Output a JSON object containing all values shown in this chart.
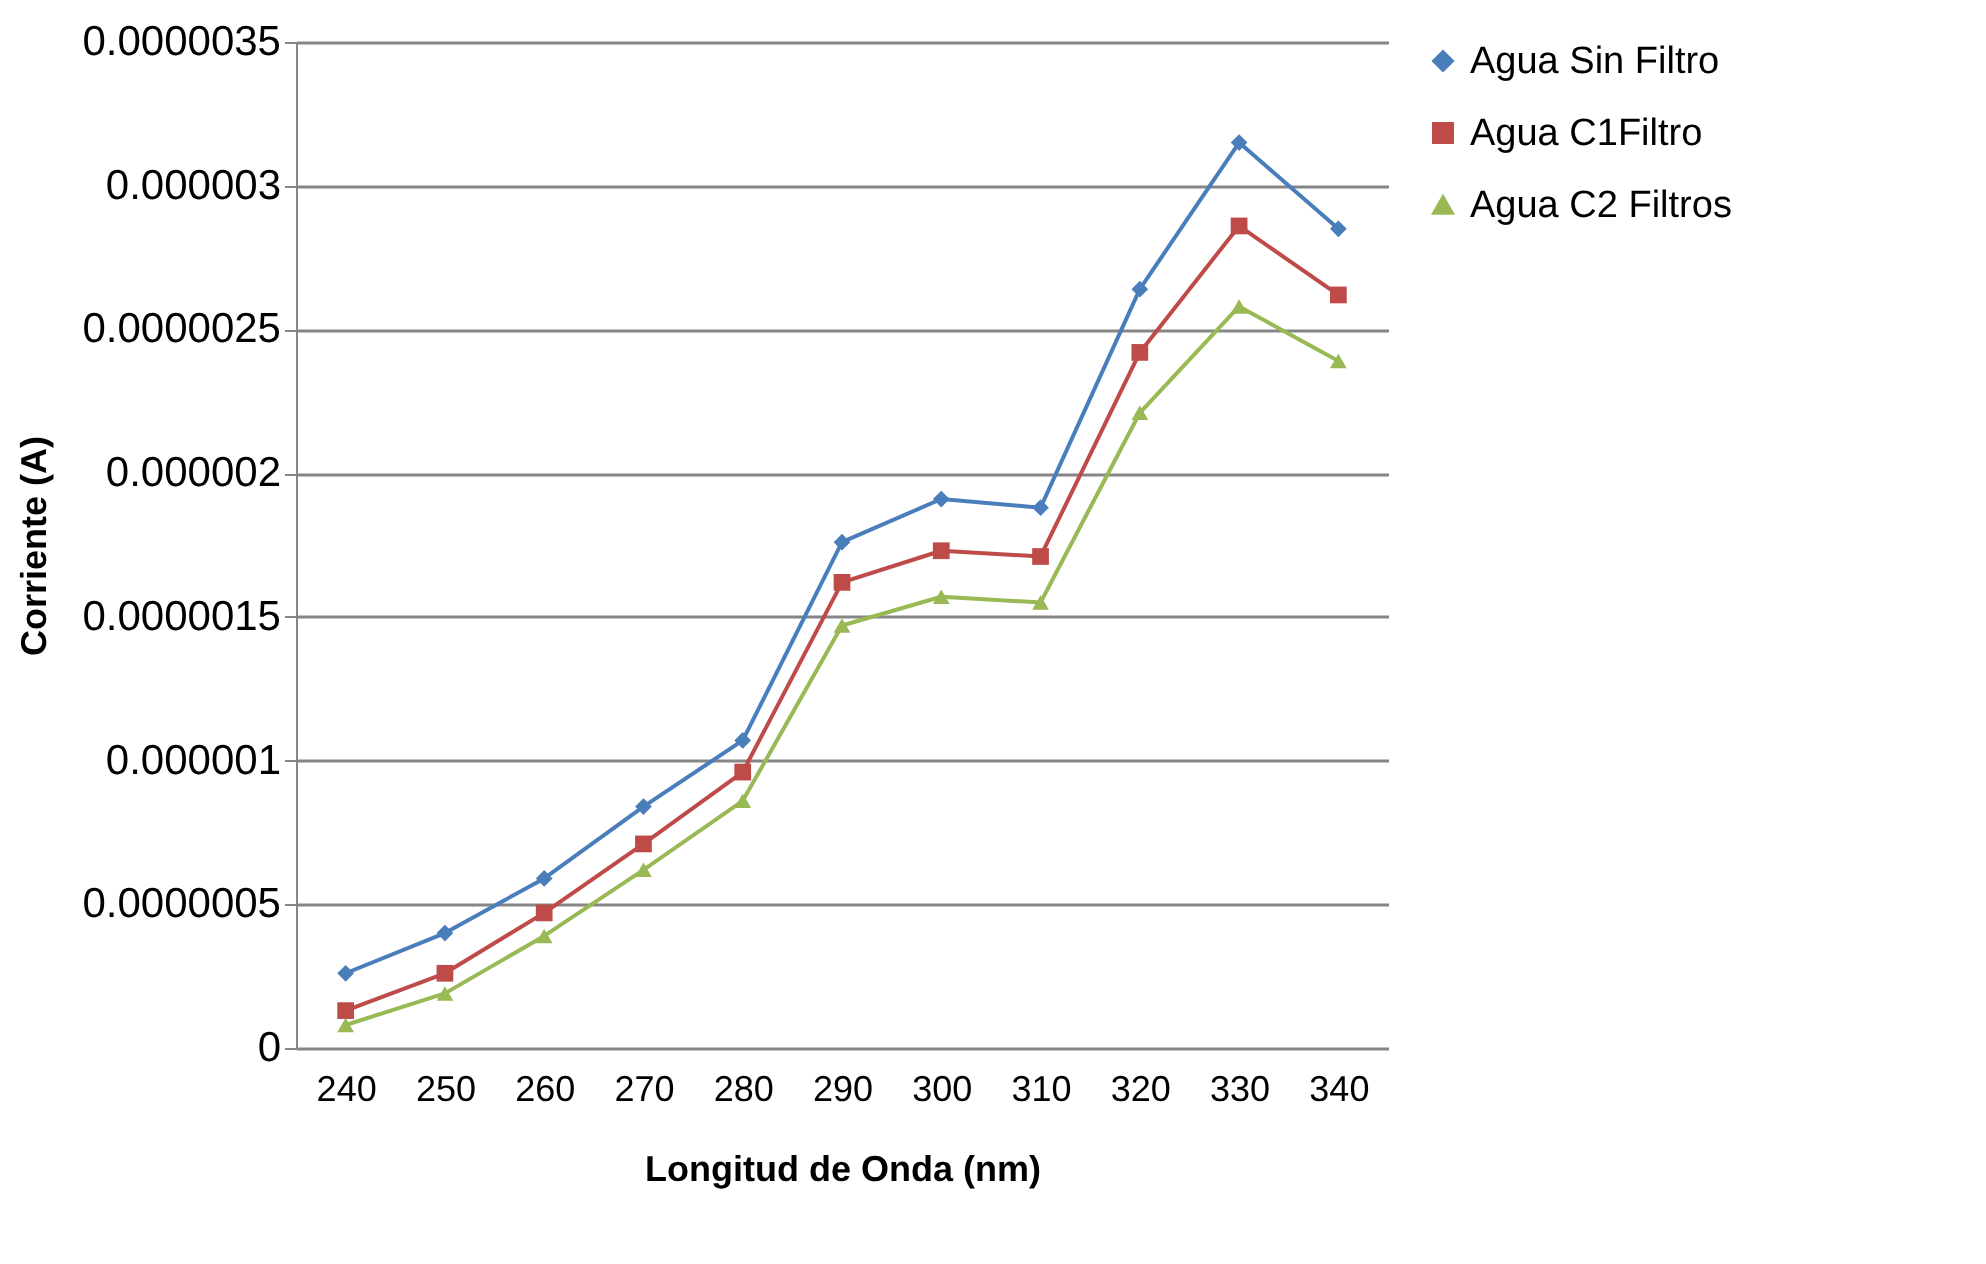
{
  "chart_data": {
    "type": "line",
    "xlabel": "Longitud de Onda (nm)",
    "ylabel": "Corriente (A)",
    "categories": [
      "240",
      "250",
      "260",
      "270",
      "280",
      "290",
      "300",
      "310",
      "320",
      "330",
      "340"
    ],
    "series": [
      {
        "name": "Agua Sin Filtro",
        "color": "#4a7ebb",
        "marker": "diamond",
        "values": [
          2.6e-07,
          4e-07,
          5.9e-07,
          8.4e-07,
          1.07e-06,
          1.76e-06,
          1.91e-06,
          1.88e-06,
          2.64e-06,
          3.15e-06,
          2.85e-06
        ]
      },
      {
        "name": "Agua C1Filtro",
        "color": "#be4b48",
        "marker": "square",
        "values": [
          1.3e-07,
          2.6e-07,
          4.7e-07,
          7.1e-07,
          9.6e-07,
          1.62e-06,
          1.73e-06,
          1.71e-06,
          2.42e-06,
          2.86e-06,
          2.62e-06
        ]
      },
      {
        "name": "Agua C2 Filtros",
        "color": "#98b954",
        "marker": "triangle",
        "values": [
          8e-08,
          1.9e-07,
          3.9e-07,
          6.2e-07,
          8.6e-07,
          1.47e-06,
          1.57e-06,
          1.55e-06,
          2.21e-06,
          2.58e-06,
          2.39e-06
        ]
      }
    ],
    "ylim": [
      0,
      3.5e-06
    ],
    "yticks": [
      0,
      {
        "value": 5e-07,
        "label": "0.0000005"
      },
      {
        "value": 1e-06,
        "label": "0.000001"
      },
      {
        "value": 1.5e-06,
        "label": "0.0000015"
      },
      {
        "value": 2e-06,
        "label": "0.000002"
      },
      {
        "value": 2.5e-06,
        "label": "0.0000025"
      },
      {
        "value": 3e-06,
        "label": "0.000003"
      },
      {
        "value": 3.5e-06,
        "label": "0.0000035"
      }
    ],
    "grid": "y",
    "legend": "right",
    "line_style": "solid"
  }
}
